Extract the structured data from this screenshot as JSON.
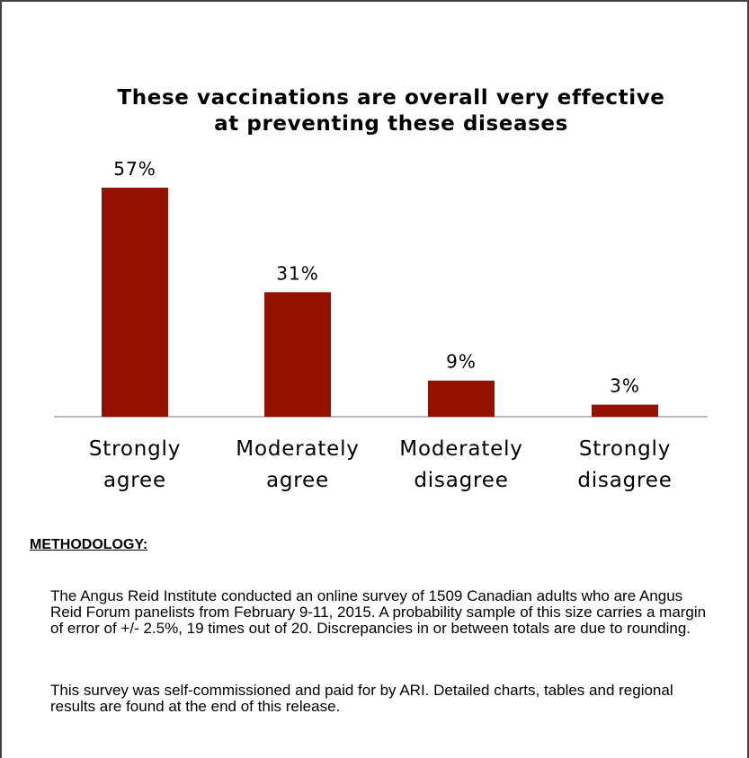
{
  "chart_data": {
    "type": "bar",
    "title_lines": [
      "These vaccinations are overall very effective",
      "at preventing these diseases"
    ],
    "categories": [
      [
        "Strongly",
        "agree"
      ],
      [
        "Moderately",
        "agree"
      ],
      [
        "Moderately",
        "disagree"
      ],
      [
        "Strongly",
        "disagree"
      ]
    ],
    "values": [
      57,
      31,
      9,
      3
    ],
    "data_labels": [
      "57%",
      "31%",
      "9%",
      "3%"
    ],
    "unit": "%",
    "ylim": [
      0,
      60
    ],
    "grid": false,
    "bar_color": "#941100",
    "axis_color": "#a6a6a6"
  },
  "methodology": {
    "heading": "METHODOLOGY:",
    "paragraphs": [
      "The Angus Reid Institute conducted an online survey of 1509 Canadian adults who are Angus Reid Forum panelists from February 9-11, 2015. A probability sample of this size carries a margin of error of +/- 2.5%, 19 times out of 20. Discrepancies in or between totals are due to rounding.",
      "This survey was self-commissioned and paid for by ARI. Detailed charts, tables and regional results are found at the end of this release."
    ]
  }
}
